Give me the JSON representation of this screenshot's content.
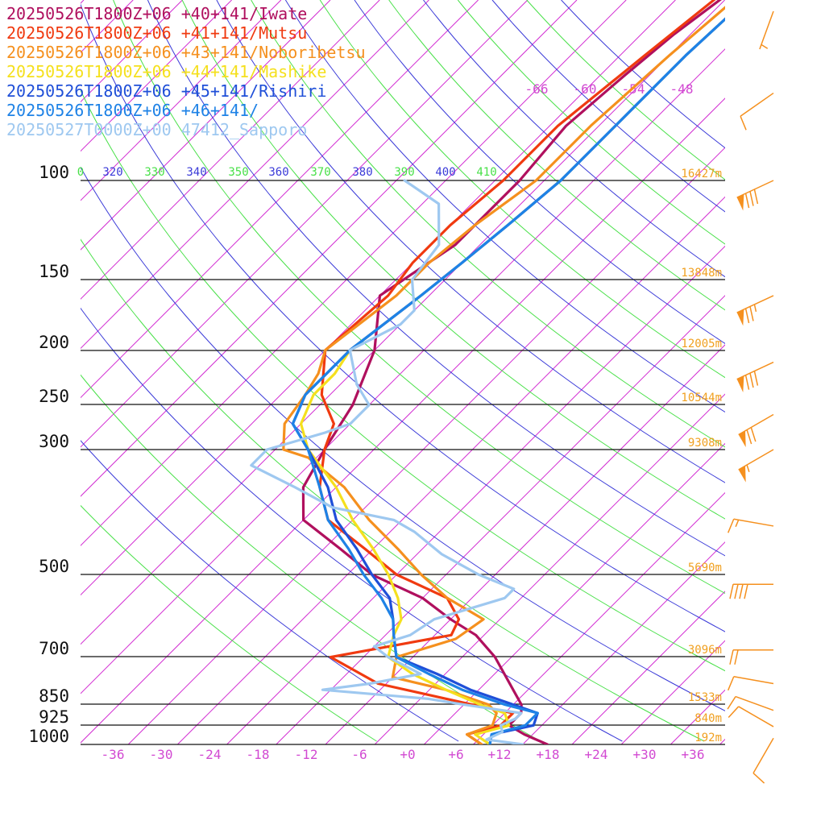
{
  "chart_data": {
    "type": "line",
    "title": "",
    "xlabel": "",
    "ylabel": "",
    "pressure_levels": [
      100,
      150,
      200,
      250,
      300,
      500,
      700,
      850,
      925,
      1000
    ],
    "pressure_labels": [
      "100",
      "150",
      "200",
      "250",
      "300",
      "500",
      "700",
      "850",
      "925",
      "1000"
    ],
    "pressure_level_y": [
      224,
      347,
      435,
      502,
      558,
      713,
      815,
      874,
      900,
      924
    ],
    "x_ticks": [
      "-36",
      "-30",
      "-24",
      "-18",
      "-12",
      "-6",
      "+0",
      "+6",
      "+12",
      "+18",
      "+24",
      "+30",
      "+36"
    ],
    "upper_isotherm_labels": [
      "-66",
      "-60",
      "-54",
      "-48"
    ],
    "theta_labels": [
      "0",
      "320",
      "330",
      "340",
      "350",
      "360",
      "370",
      "380",
      "390",
      "400",
      "410"
    ],
    "height_labels": [
      "16427m",
      "13848m",
      "12005m",
      "10544m",
      "9308m",
      "5690m",
      "3096m",
      "1533m",
      "840m",
      "192m"
    ],
    "grid": true,
    "legend_position": "top-left",
    "series": [
      {
        "name": "20250526T1800Z+06 +40+141/Iwate",
        "color": "#b0105e",
        "points": [
          [
            1000,
            17
          ],
          [
            960,
            13
          ],
          [
            925,
            10
          ],
          [
            880,
            10
          ],
          [
            850,
            9
          ],
          [
            700,
            0
          ],
          [
            640,
            -5
          ],
          [
            600,
            -10
          ],
          [
            550,
            -16
          ],
          [
            500,
            -25
          ],
          [
            450,
            -32
          ],
          [
            400,
            -40
          ],
          [
            350,
            -44
          ],
          [
            300,
            -46
          ],
          [
            250,
            -48
          ],
          [
            200,
            -52
          ],
          [
            160,
            -58
          ],
          [
            130,
            -55
          ],
          [
            100,
            -55
          ],
          [
            80,
            -56
          ],
          [
            65,
            -55
          ],
          [
            55,
            -54
          ],
          [
            45,
            -52
          ],
          [
            35,
            -50
          ]
        ]
      },
      {
        "name": "20250526T1800Z+06 +41+141/Mutsu",
        "color": "#f03a10",
        "points": [
          [
            1000,
            9
          ],
          [
            960,
            6
          ],
          [
            925,
            9
          ],
          [
            880,
            9
          ],
          [
            850,
            3
          ],
          [
            780,
            -11
          ],
          [
            700,
            -20
          ],
          [
            640,
            -8
          ],
          [
            600,
            -9
          ],
          [
            550,
            -13
          ],
          [
            500,
            -22
          ],
          [
            450,
            -29
          ],
          [
            400,
            -37
          ],
          [
            350,
            -42
          ],
          [
            300,
            -46
          ],
          [
            270,
            -48
          ],
          [
            240,
            -53
          ],
          [
            200,
            -58
          ],
          [
            160,
            -57
          ],
          [
            140,
            -58
          ],
          [
            120,
            -58
          ],
          [
            100,
            -57
          ],
          [
            80,
            -57
          ],
          [
            60,
            -55
          ],
          [
            40,
            -52
          ]
        ]
      },
      {
        "name": "20250526T1800Z+06 +43+141/Noboribetsu",
        "color": "#f5901e",
        "points": [
          [
            1000,
            9
          ],
          [
            960,
            6
          ],
          [
            925,
            8
          ],
          [
            880,
            7
          ],
          [
            850,
            5
          ],
          [
            800,
            -2
          ],
          [
            760,
            -10
          ],
          [
            700,
            -12
          ],
          [
            650,
            -7
          ],
          [
            600,
            -6
          ],
          [
            550,
            -13
          ],
          [
            500,
            -19
          ],
          [
            450,
            -25
          ],
          [
            400,
            -32
          ],
          [
            350,
            -39
          ],
          [
            310,
            -47
          ],
          [
            300,
            -51
          ],
          [
            270,
            -54
          ],
          [
            240,
            -55
          ],
          [
            220,
            -56
          ],
          [
            200,
            -58
          ],
          [
            160,
            -56
          ],
          [
            140,
            -56
          ],
          [
            120,
            -55
          ],
          [
            100,
            -53
          ],
          [
            80,
            -53
          ],
          [
            60,
            -52
          ],
          [
            40,
            -50
          ]
        ]
      },
      {
        "name": "20250526T1800Z+06 +44+141/Mashike",
        "color": "#f5e01e",
        "points": [
          [
            1000,
            10
          ],
          [
            960,
            7
          ],
          [
            925,
            10
          ],
          [
            880,
            8
          ],
          [
            850,
            4
          ],
          [
            800,
            -2
          ],
          [
            750,
            -8
          ],
          [
            700,
            -13
          ],
          [
            640,
            -15
          ],
          [
            600,
            -16
          ],
          [
            550,
            -19
          ],
          [
            500,
            -23
          ],
          [
            450,
            -28
          ],
          [
            400,
            -34
          ],
          [
            350,
            -40
          ],
          [
            300,
            -48
          ],
          [
            270,
            -52
          ],
          [
            240,
            -54
          ],
          [
            220,
            -54
          ],
          [
            200,
            -55
          ],
          [
            160,
            -53
          ],
          [
            140,
            -52
          ],
          [
            120,
            -51
          ],
          [
            100,
            -50
          ],
          [
            80,
            -50
          ],
          [
            60,
            -50
          ],
          [
            40,
            -49
          ]
        ]
      },
      {
        "name": "20250526T1800Z+06 +45+141/Rishiri",
        "color": "#1f4fd8",
        "points": [
          [
            1000,
            10
          ],
          [
            960,
            9
          ],
          [
            925,
            13
          ],
          [
            880,
            12
          ],
          [
            850,
            8
          ],
          [
            800,
            1
          ],
          [
            750,
            -5
          ],
          [
            700,
            -12
          ],
          [
            640,
            -15
          ],
          [
            600,
            -17
          ],
          [
            550,
            -20
          ],
          [
            500,
            -25
          ],
          [
            450,
            -30
          ],
          [
            400,
            -36
          ],
          [
            350,
            -41
          ],
          [
            300,
            -48
          ],
          [
            270,
            -53
          ],
          [
            240,
            -55
          ],
          [
            220,
            -55
          ],
          [
            200,
            -55
          ],
          [
            160,
            -53
          ],
          [
            140,
            -52
          ],
          [
            120,
            -51
          ],
          [
            100,
            -50
          ],
          [
            80,
            -50
          ],
          [
            60,
            -50
          ],
          [
            40,
            -49
          ]
        ]
      },
      {
        "name": "20250526T1800Z+06 +46+141/",
        "color": "#1e82e6",
        "points": [
          [
            1000,
            10
          ],
          [
            960,
            9
          ],
          [
            925,
            12
          ],
          [
            880,
            12
          ],
          [
            850,
            7
          ],
          [
            800,
            0
          ],
          [
            750,
            -6
          ],
          [
            700,
            -12
          ],
          [
            640,
            -15
          ],
          [
            600,
            -17
          ],
          [
            550,
            -21
          ],
          [
            500,
            -26
          ],
          [
            450,
            -31
          ],
          [
            400,
            -37
          ],
          [
            350,
            -42
          ],
          [
            300,
            -48
          ],
          [
            270,
            -53
          ],
          [
            240,
            -55
          ],
          [
            220,
            -55
          ],
          [
            200,
            -55
          ],
          [
            160,
            -53
          ],
          [
            140,
            -52
          ],
          [
            120,
            -51
          ],
          [
            100,
            -50
          ],
          [
            80,
            -50
          ],
          [
            60,
            -50
          ],
          [
            40,
            -49
          ]
        ]
      },
      {
        "name": "20250527T0000Z+00 47412_Sapporo",
        "color": "#9ec8f0",
        "points": [
          [
            1000,
            14
          ],
          [
            980,
            9
          ],
          [
            950,
            10
          ],
          [
            925,
            9
          ],
          [
            900,
            10
          ],
          [
            880,
            10
          ],
          [
            850,
            2
          ],
          [
            830,
            -3
          ],
          [
            800,
            -17
          ],
          [
            780,
            -12
          ],
          [
            750,
            -7
          ],
          [
            700,
            -13
          ],
          [
            670,
            -16
          ],
          [
            640,
            -13
          ],
          [
            600,
            -12
          ],
          [
            550,
            -6
          ],
          [
            530,
            -6
          ],
          [
            500,
            -12
          ],
          [
            460,
            -19
          ],
          [
            420,
            -25
          ],
          [
            400,
            -29
          ],
          [
            380,
            -38
          ],
          [
            350,
            -45
          ],
          [
            320,
            -53
          ],
          [
            300,
            -53
          ],
          [
            280,
            -48
          ],
          [
            270,
            -46
          ],
          [
            250,
            -46
          ],
          [
            230,
            -50
          ],
          [
            200,
            -55
          ],
          [
            180,
            -52
          ],
          [
            170,
            -52
          ],
          [
            150,
            -56
          ],
          [
            130,
            -57
          ],
          [
            110,
            -62
          ],
          [
            100,
            -69
          ]
        ]
      }
    ],
    "wind_barbs": [
      {
        "pressure": 975,
        "speed": 10,
        "direction": 210
      },
      {
        "pressure": 930,
        "speed": 10,
        "direction": 300
      },
      {
        "pressure": 870,
        "speed": 10,
        "direction": 290
      },
      {
        "pressure": 780,
        "speed": 10,
        "direction": 280
      },
      {
        "pressure": 680,
        "speed": 20,
        "direction": 270
      },
      {
        "pressure": 520,
        "speed": 40,
        "direction": 270
      },
      {
        "pressure": 410,
        "speed": 15,
        "direction": 280
      },
      {
        "pressure": 300,
        "speed": 55,
        "direction": 240
      },
      {
        "pressure": 260,
        "speed": 70,
        "direction": 240
      },
      {
        "pressure": 210,
        "speed": 80,
        "direction": 245
      },
      {
        "pressure": 160,
        "speed": 75,
        "direction": 245
      },
      {
        "pressure": 100,
        "speed": 80,
        "direction": 245
      },
      {
        "pressure": 70,
        "speed": 10,
        "direction": 235
      },
      {
        "pressure": 50,
        "speed": 5,
        "direction": 200
      }
    ]
  },
  "colors": {
    "isotherm": "#d22cd2",
    "dry_adiabat_blue": "#3a3ad8",
    "dry_adiabat_green": "#48e048",
    "grid": "#111111",
    "height_label": "#f0a020",
    "wind_barb": "#f5901e"
  }
}
